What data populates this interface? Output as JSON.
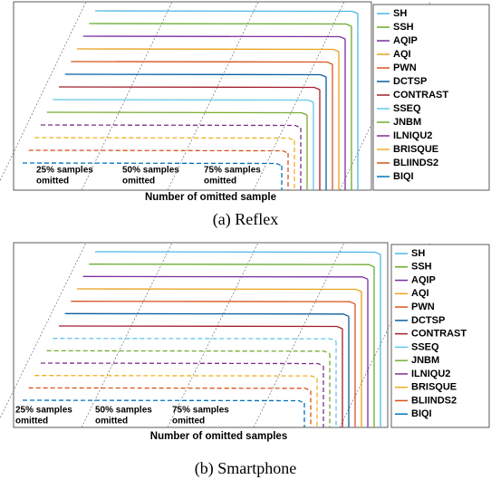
{
  "colors": [
    "#4db8e4",
    "#6aaa2e",
    "#7b2d9e",
    "#e8a21d",
    "#d9541e",
    "#0b5e9e",
    "#a3202e",
    "#63c7e8",
    "#77ac30",
    "#7e2f8e",
    "#edb120",
    "#d95319",
    "#0072bd"
  ],
  "panels": [
    {
      "legend": [
        "SH",
        "SSH",
        "AQIP",
        "AQI",
        "PWN",
        "DCTSP",
        "CONTRAST",
        "SSEQ",
        "JNBM",
        "ILNIQU2",
        "BRISQUE",
        "BLIINDS2",
        "BIQI"
      ],
      "annotations": [
        [
          "25% samples",
          "omitted"
        ],
        [
          "50% samples",
          "omitted"
        ],
        [
          "75% samples",
          "omitted"
        ]
      ],
      "xlabel": "Number of omitted sample",
      "caption": "(a) Reflex"
    },
    {
      "legend": [
        "SH",
        "SSH",
        "AQIP",
        "AQI",
        "PWN",
        "DCTSP",
        "CONTRAST",
        "SSEQ",
        "JNBM",
        "ILNIQU2",
        "BRISQUE",
        "BLIINDS2",
        "BIQI"
      ],
      "annotations": [
        [
          "25% samples",
          "omitted"
        ],
        [
          "50% samples",
          "omitted"
        ],
        [
          "75% samples",
          "omitted"
        ]
      ],
      "xlabel": "Number of omitted samples",
      "caption": "(b) Smartphone"
    }
  ]
}
